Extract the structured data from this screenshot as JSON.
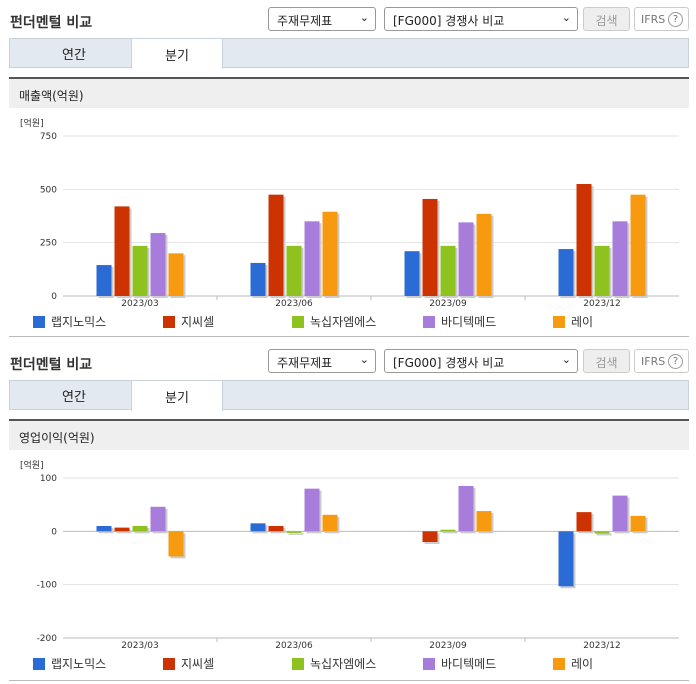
{
  "panels": [
    {
      "header": {
        "title": "펀더멘털 비교",
        "select1": "주재무제표",
        "select2": "[FG000] 경쟁사 비교",
        "search_button": "검색",
        "ifrs_button": "IFRS",
        "help_icon": "?"
      },
      "tabs": [
        {
          "label": "연간"
        },
        {
          "label": "분기"
        }
      ],
      "subheader": "매출액(억원)",
      "unit_label": "[억원]"
    },
    {
      "header": {
        "title": "펀더멘털 비교",
        "select1": "주재무제표",
        "select2": "[FG000] 경쟁사 비교",
        "search_button": "검색",
        "ifrs_button": "IFRS",
        "help_icon": "?"
      },
      "tabs": [
        {
          "label": "연간"
        },
        {
          "label": "분기"
        }
      ],
      "subheader": "영업이익(억원)",
      "unit_label": "[억원]"
    }
  ],
  "colors": {
    "series": [
      "#2a6bd6",
      "#cc3300",
      "#8dc21f",
      "#a77cdb",
      "#f79a0f"
    ],
    "tab_bg": "#e3e9f0"
  },
  "chart_data": [
    {
      "type": "bar",
      "title": "매출액(억원)",
      "categories": [
        "2023/03",
        "2023/06",
        "2023/09",
        "2023/12"
      ],
      "yticks": [
        "750",
        "500",
        "250",
        "0"
      ],
      "ylim": [
        0,
        750
      ],
      "series": [
        {
          "name": "랩지노믹스",
          "values": [
            145,
            155,
            210,
            220
          ]
        },
        {
          "name": "지씨셀",
          "values": [
            420,
            475,
            455,
            525
          ]
        },
        {
          "name": "녹십자엠에스",
          "values": [
            235,
            235,
            235,
            235
          ]
        },
        {
          "name": "바디텍메드",
          "values": [
            295,
            350,
            345,
            350
          ]
        },
        {
          "name": "레이",
          "values": [
            200,
            395,
            385,
            475
          ]
        }
      ],
      "legend": "bottom"
    },
    {
      "type": "bar",
      "title": "영업이익(억원)",
      "categories": [
        "2023/03",
        "2023/06",
        "2023/09",
        "2023/12"
      ],
      "yticks": [
        "100",
        "0",
        "-100",
        "-200"
      ],
      "ylim": [
        -200,
        100
      ],
      "series": [
        {
          "name": "랩지노믹스",
          "values": [
            10,
            15,
            0,
            -103
          ]
        },
        {
          "name": "지씨셀",
          "values": [
            7,
            10,
            -20,
            36
          ]
        },
        {
          "name": "녹십자엠에스",
          "values": [
            10,
            -3,
            3,
            -4
          ]
        },
        {
          "name": "바디텍메드",
          "values": [
            46,
            80,
            85,
            67
          ]
        },
        {
          "name": "레이",
          "values": [
            -47,
            31,
            38,
            29
          ]
        }
      ],
      "legend": "bottom"
    }
  ]
}
